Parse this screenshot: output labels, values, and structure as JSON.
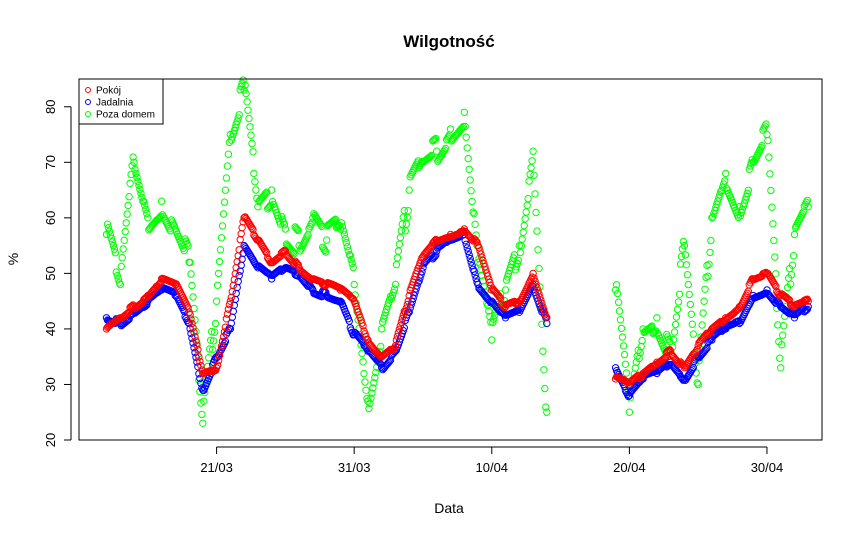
{
  "chart_data": {
    "type": "scatter",
    "title": "Wilgotność",
    "xlabel": "Data",
    "ylabel": "%",
    "x_unit": "date (2021)",
    "xlim": [
      "2021-03-11",
      "2021-05-04"
    ],
    "ylim": [
      20,
      85
    ],
    "x_ticks": [
      {
        "date": "2021-03-21",
        "label": "21/03"
      },
      {
        "date": "2021-03-31",
        "label": "31/03"
      },
      {
        "date": "2021-04-10",
        "label": "10/04"
      },
      {
        "date": "2021-04-20",
        "label": "20/04"
      },
      {
        "date": "2021-04-30",
        "label": "30/04"
      }
    ],
    "y_ticks": [
      20,
      30,
      40,
      50,
      60,
      70,
      80
    ],
    "grid": false,
    "legend_position": "top-left",
    "marker": "open-circle",
    "series": [
      {
        "name": "Pokój",
        "color": "#ff0000",
        "points": [
          [
            "2021-03-13",
            40
          ],
          [
            "2021-03-14",
            42
          ],
          [
            "2021-03-15",
            44
          ],
          [
            "2021-03-16",
            46
          ],
          [
            "2021-03-17",
            49
          ],
          [
            "2021-03-18",
            48
          ],
          [
            "2021-03-19",
            43
          ],
          [
            "2021-03-20",
            32
          ],
          [
            "2021-03-21",
            33
          ],
          [
            "2021-03-22",
            45
          ],
          [
            "2021-03-23",
            60
          ],
          [
            "2021-03-24",
            56
          ],
          [
            "2021-03-25",
            52
          ],
          [
            "2021-03-26",
            54
          ],
          [
            "2021-03-27",
            51
          ],
          [
            "2021-03-28",
            49
          ],
          [
            "2021-03-29",
            48
          ],
          [
            "2021-03-30",
            47
          ],
          [
            "2021-03-31",
            45
          ],
          [
            "2021-04-01",
            38
          ],
          [
            "2021-04-02",
            35
          ],
          [
            "2021-04-03",
            37
          ],
          [
            "2021-04-04",
            46
          ],
          [
            "2021-04-05",
            53
          ],
          [
            "2021-04-06",
            56
          ],
          [
            "2021-04-07",
            57
          ],
          [
            "2021-04-08",
            58
          ],
          [
            "2021-04-09",
            55
          ],
          [
            "2021-04-10",
            47
          ],
          [
            "2021-04-11",
            44
          ],
          [
            "2021-04-12",
            45
          ],
          [
            "2021-04-13",
            50
          ],
          [
            "2021-04-14",
            42
          ],
          [
            "2021-04-19",
            31
          ],
          [
            "2021-04-20",
            30
          ],
          [
            "2021-04-21",
            32
          ],
          [
            "2021-04-22",
            34
          ],
          [
            "2021-04-23",
            36
          ],
          [
            "2021-04-24",
            33
          ],
          [
            "2021-04-25",
            37
          ],
          [
            "2021-04-26",
            40
          ],
          [
            "2021-04-27",
            42
          ],
          [
            "2021-04-28",
            44
          ],
          [
            "2021-04-29",
            49
          ],
          [
            "2021-04-30",
            50
          ],
          [
            "2021-05-01",
            46
          ],
          [
            "2021-05-02",
            44
          ],
          [
            "2021-05-03",
            45
          ]
        ]
      },
      {
        "name": "Jadalnia",
        "color": "#0000ff",
        "points": [
          [
            "2021-03-13",
            42
          ],
          [
            "2021-03-14",
            41
          ],
          [
            "2021-03-15",
            43
          ],
          [
            "2021-03-16",
            45
          ],
          [
            "2021-03-17",
            47
          ],
          [
            "2021-03-18",
            46
          ],
          [
            "2021-03-19",
            41
          ],
          [
            "2021-03-20",
            29
          ],
          [
            "2021-03-21",
            35
          ],
          [
            "2021-03-22",
            40
          ],
          [
            "2021-03-23",
            55
          ],
          [
            "2021-03-24",
            51
          ],
          [
            "2021-03-25",
            49
          ],
          [
            "2021-03-26",
            51
          ],
          [
            "2021-03-27",
            50
          ],
          [
            "2021-03-28",
            47
          ],
          [
            "2021-03-29",
            46
          ],
          [
            "2021-03-30",
            45
          ],
          [
            "2021-03-31",
            39
          ],
          [
            "2021-04-01",
            36
          ],
          [
            "2021-04-02",
            33
          ],
          [
            "2021-04-03",
            36
          ],
          [
            "2021-04-04",
            43
          ],
          [
            "2021-04-05",
            51
          ],
          [
            "2021-04-06",
            54
          ],
          [
            "2021-04-07",
            56
          ],
          [
            "2021-04-08",
            57
          ],
          [
            "2021-04-09",
            48
          ],
          [
            "2021-04-10",
            45
          ],
          [
            "2021-04-11",
            42
          ],
          [
            "2021-04-12",
            43
          ],
          [
            "2021-04-13",
            48
          ],
          [
            "2021-04-14",
            41
          ],
          [
            "2021-04-19",
            33
          ],
          [
            "2021-04-20",
            28
          ],
          [
            "2021-04-21",
            31
          ],
          [
            "2021-04-22",
            32
          ],
          [
            "2021-04-23",
            34
          ],
          [
            "2021-04-24",
            31
          ],
          [
            "2021-04-25",
            35
          ],
          [
            "2021-04-26",
            38
          ],
          [
            "2021-04-27",
            40
          ],
          [
            "2021-04-28",
            41
          ],
          [
            "2021-04-29",
            46
          ],
          [
            "2021-04-30",
            47
          ],
          [
            "2021-05-01",
            44
          ],
          [
            "2021-05-02",
            42
          ],
          [
            "2021-05-03",
            44
          ]
        ]
      },
      {
        "name": "Poza domem",
        "color": "#00ff00",
        "points": [
          [
            "2021-03-13",
            57
          ],
          [
            "2021-03-14",
            48
          ],
          [
            "2021-03-15",
            70
          ],
          [
            "2021-03-16",
            60
          ],
          [
            "2021-03-17",
            63
          ],
          [
            "2021-03-18",
            58
          ],
          [
            "2021-03-19",
            52
          ],
          [
            "2021-03-20",
            23
          ],
          [
            "2021-03-21",
            45
          ],
          [
            "2021-03-22",
            75
          ],
          [
            "2021-03-23",
            83
          ],
          [
            "2021-03-24",
            62
          ],
          [
            "2021-03-25",
            65
          ],
          [
            "2021-03-26",
            58
          ],
          [
            "2021-03-27",
            55
          ],
          [
            "2021-03-28",
            60
          ],
          [
            "2021-03-29",
            56
          ],
          [
            "2021-03-30",
            58
          ],
          [
            "2021-03-31",
            48
          ],
          [
            "2021-04-01",
            27
          ],
          [
            "2021-04-02",
            40
          ],
          [
            "2021-04-03",
            48
          ],
          [
            "2021-04-04",
            65
          ],
          [
            "2021-04-05",
            70
          ],
          [
            "2021-04-06",
            72
          ],
          [
            "2021-04-07",
            76
          ],
          [
            "2021-04-08",
            79
          ],
          [
            "2021-04-09",
            52
          ],
          [
            "2021-04-10",
            38
          ],
          [
            "2021-04-11",
            47
          ],
          [
            "2021-04-12",
            55
          ],
          [
            "2021-04-13",
            72
          ],
          [
            "2021-04-14",
            25
          ],
          [
            "2021-04-19",
            47
          ],
          [
            "2021-04-20",
            25
          ],
          [
            "2021-04-21",
            40
          ],
          [
            "2021-04-22",
            42
          ],
          [
            "2021-04-23",
            36
          ],
          [
            "2021-04-24",
            55
          ],
          [
            "2021-04-25",
            30
          ],
          [
            "2021-04-26",
            60
          ],
          [
            "2021-04-27",
            68
          ],
          [
            "2021-04-28",
            62
          ],
          [
            "2021-04-29",
            70
          ],
          [
            "2021-04-30",
            75
          ],
          [
            "2021-05-01",
            33
          ],
          [
            "2021-05-02",
            57
          ],
          [
            "2021-05-03",
            62
          ]
        ]
      }
    ]
  }
}
